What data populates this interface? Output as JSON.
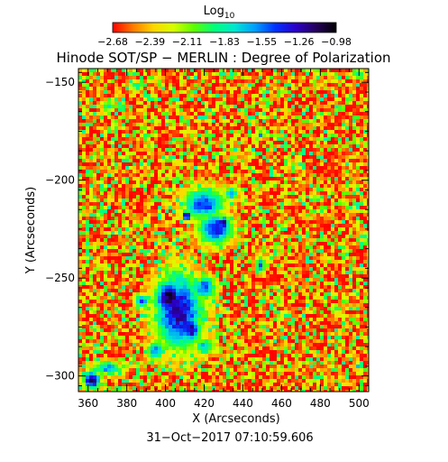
{
  "chart_data": {
    "type": "heatmap",
    "title": "Hinode SOT/SP − MERLIN : Degree of Polarization",
    "colorbar": {
      "label_base": "Log",
      "label_sub": "10",
      "ticks": [
        "−2.68",
        "−2.39",
        "−2.11",
        "−1.83",
        "−1.55",
        "−1.26",
        "−0.98"
      ],
      "range": [
        -2.68,
        -0.98
      ],
      "colormap": [
        "#ff0000",
        "#ff7a00",
        "#ffd500",
        "#d6ff00",
        "#5aff00",
        "#00ff7a",
        "#00e6d0",
        "#009dff",
        "#0030ff",
        "#2a00c8",
        "#24005a",
        "#000000"
      ]
    },
    "xlabel": "X (Arcseconds)",
    "ylabel": "Y (Arcseconds)",
    "xlim": [
      355,
      505
    ],
    "ylim": [
      -308,
      -143
    ],
    "xticks": [
      360,
      380,
      400,
      420,
      440,
      460,
      480,
      500
    ],
    "yticks": [
      -150,
      -200,
      -250,
      -300
    ],
    "blobs": [
      {
        "x": 407,
        "y": -267,
        "rx": 14,
        "ry": 22,
        "value": -1.25
      },
      {
        "x": 402,
        "y": -260,
        "rx": 8,
        "ry": 10,
        "value": -1.05
      },
      {
        "x": 420,
        "y": -255,
        "rx": 7,
        "ry": 7,
        "value": -1.45
      },
      {
        "x": 413,
        "y": -276,
        "rx": 6,
        "ry": 8,
        "value": -1.2
      },
      {
        "x": 395,
        "y": -287,
        "rx": 5,
        "ry": 6,
        "value": -1.6
      },
      {
        "x": 420,
        "y": -285,
        "rx": 6,
        "ry": 5,
        "value": -1.7
      },
      {
        "x": 420,
        "y": -212,
        "rx": 12,
        "ry": 9,
        "value": -1.4
      },
      {
        "x": 426,
        "y": -225,
        "rx": 10,
        "ry": 9,
        "value": -1.35
      },
      {
        "x": 430,
        "y": -222,
        "rx": 3,
        "ry": 4,
        "value": -1.05
      },
      {
        "x": 411,
        "y": -218,
        "rx": 3,
        "ry": 3,
        "value": -1.1
      },
      {
        "x": 434,
        "y": -207,
        "rx": 4,
        "ry": 4,
        "value": -1.55
      },
      {
        "x": 388,
        "y": -262,
        "rx": 4,
        "ry": 4,
        "value": -1.5
      },
      {
        "x": 449,
        "y": -243,
        "rx": 3,
        "ry": 5,
        "value": -1.5
      },
      {
        "x": 362,
        "y": -302,
        "rx": 5,
        "ry": 5,
        "value": -1.05
      },
      {
        "x": 370,
        "y": -296,
        "rx": 9,
        "ry": 4,
        "value": -1.6
      },
      {
        "x": 371,
        "y": -162,
        "rx": 4,
        "ry": 3,
        "value": -1.85
      },
      {
        "x": 385,
        "y": -152,
        "rx": 4,
        "ry": 3,
        "value": -1.9
      },
      {
        "x": 449,
        "y": -177,
        "rx": 2,
        "ry": 2,
        "value": -1.5
      },
      {
        "x": 500,
        "y": -146,
        "rx": 4,
        "ry": 3,
        "value": -1.85
      },
      {
        "x": 500,
        "y": -295,
        "rx": 2,
        "ry": 2,
        "value": -1.55
      }
    ]
  },
  "footer": {
    "timestamp": "31−Oct−2017 07:10:59.606"
  }
}
